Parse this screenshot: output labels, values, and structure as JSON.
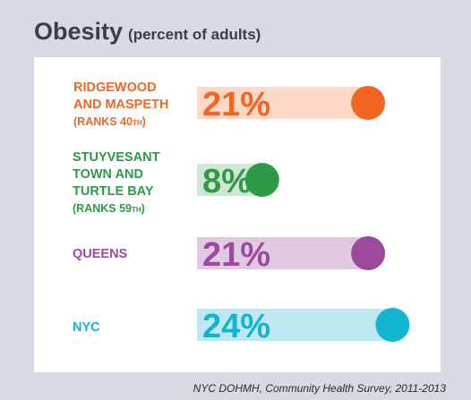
{
  "chart_data": {
    "type": "bar",
    "title": "Obesity",
    "subtitle": "(percent of adults)",
    "categories": [
      {
        "lines": [
          "RIDGEWOOD",
          "AND MASPETH"
        ],
        "rank_prefix": "(RANKS 40",
        "rank_sup": "TH",
        "rank_suffix": ")"
      },
      {
        "lines": [
          "STUYVESANT",
          "TOWN AND",
          "TURTLE BAY"
        ],
        "rank_prefix": "(RANKS 59",
        "rank_sup": "TH",
        "rank_suffix": ")"
      },
      {
        "lines": [
          "QUEENS"
        ]
      },
      {
        "lines": [
          "NYC"
        ]
      }
    ],
    "values": [
      21,
      8,
      21,
      24
    ],
    "value_labels": [
      "21%",
      "8%",
      "21%",
      "24%"
    ],
    "colors": [
      "#f26522",
      "#2e9a47",
      "#9b4a9e",
      "#12b5cf"
    ],
    "track_colors": [
      "#fcd8c6",
      "#d1e7d5",
      "#e1c9e2",
      "#bee8f0"
    ],
    "source": "NYC DOHMH, Community Health Survey, 2011-2013"
  }
}
